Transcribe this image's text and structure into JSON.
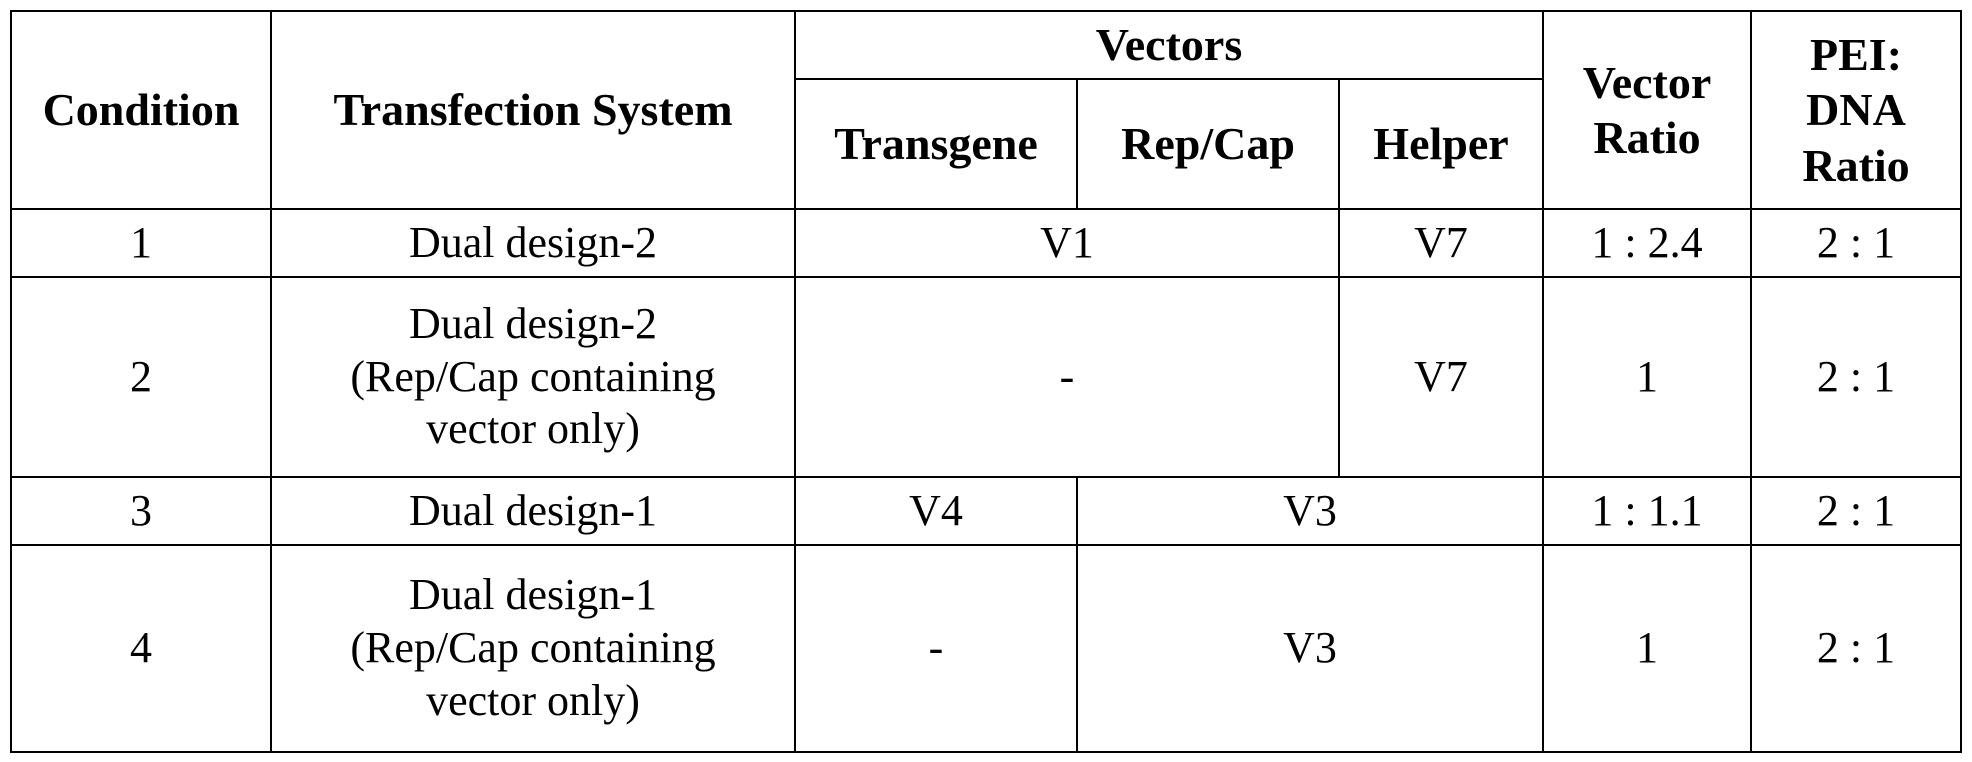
{
  "table": {
    "headers": {
      "condition": "Condition",
      "transfection_system": "Transfection System",
      "vectors": "Vectors",
      "transgene": "Transgene",
      "rep_cap": "Rep/Cap",
      "helper": "Helper",
      "vector_ratio": "Vector Ratio",
      "pei_dna_ratio_line1": "PEI:",
      "pei_dna_ratio_line2": "DNA",
      "pei_dna_ratio_line3": "Ratio"
    },
    "rows": [
      {
        "condition": "1",
        "system_line1": "Dual design-2",
        "vectors_transgene_repcap": "V1",
        "helper": "V7",
        "vector_ratio": "1 : 2.4",
        "pei_dna_ratio": "2 : 1"
      },
      {
        "condition": "2",
        "system_line1": "Dual design-2",
        "system_line2": "(Rep/Cap containing",
        "system_line3": "vector only)",
        "vectors_transgene_repcap": "-",
        "helper": "V7",
        "vector_ratio": "1",
        "pei_dna_ratio": "2 : 1"
      },
      {
        "condition": "3",
        "system_line1": "Dual design-1",
        "transgene": "V4",
        "vectors_repcap_helper": "V3",
        "vector_ratio": "1 : 1.1",
        "pei_dna_ratio": "2 : 1"
      },
      {
        "condition": "4",
        "system_line1": "Dual design-1",
        "system_line2": "(Rep/Cap containing",
        "system_line3": "vector only)",
        "transgene": "-",
        "vectors_repcap_helper": "V3",
        "vector_ratio": "1",
        "pei_dna_ratio": "2 : 1"
      }
    ]
  }
}
